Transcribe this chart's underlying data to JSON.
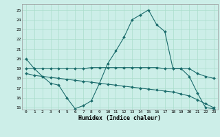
{
  "xlabel": "Humidex (Indice chaleur)",
  "background_color": "#cceee8",
  "grid_color": "#aaddcc",
  "line_color": "#1a6b6b",
  "xlim": [
    -0.5,
    23.5
  ],
  "ylim": [
    14.8,
    25.6
  ],
  "yticks": [
    15,
    16,
    17,
    18,
    19,
    20,
    21,
    22,
    23,
    24,
    25
  ],
  "xticks": [
    0,
    1,
    2,
    3,
    4,
    5,
    6,
    7,
    8,
    9,
    10,
    11,
    12,
    13,
    14,
    15,
    16,
    17,
    18,
    19,
    20,
    21,
    22,
    23
  ],
  "series1_x": [
    0,
    1,
    2,
    3,
    4,
    5,
    6,
    7,
    8,
    9,
    10,
    11,
    12,
    13,
    14,
    15,
    16,
    17,
    18,
    19,
    20,
    21,
    22,
    23
  ],
  "series1_y": [
    20.0,
    19.0,
    18.2,
    17.5,
    17.3,
    16.0,
    14.9,
    15.2,
    15.7,
    17.5,
    19.5,
    20.8,
    22.2,
    24.0,
    24.5,
    25.0,
    23.5,
    22.8,
    19.0,
    19.0,
    18.2,
    16.5,
    15.0,
    14.9
  ],
  "series2_x": [
    0,
    1,
    2,
    3,
    4,
    5,
    6,
    7,
    8,
    9,
    10,
    11,
    12,
    13,
    14,
    15,
    16,
    17,
    18,
    19,
    20,
    21,
    22,
    23
  ],
  "series2_y": [
    19.0,
    19.0,
    19.0,
    19.0,
    19.0,
    19.0,
    19.0,
    19.0,
    19.1,
    19.1,
    19.1,
    19.1,
    19.1,
    19.1,
    19.1,
    19.1,
    19.1,
    19.0,
    19.0,
    19.0,
    19.0,
    18.5,
    18.2,
    18.0
  ],
  "series3_x": [
    0,
    1,
    2,
    3,
    4,
    5,
    6,
    7,
    8,
    9,
    10,
    11,
    12,
    13,
    14,
    15,
    16,
    17,
    18,
    19,
    20,
    21,
    22,
    23
  ],
  "series3_y": [
    18.5,
    18.3,
    18.2,
    18.1,
    18.0,
    17.9,
    17.8,
    17.7,
    17.6,
    17.5,
    17.4,
    17.3,
    17.2,
    17.1,
    17.0,
    16.9,
    16.8,
    16.7,
    16.6,
    16.4,
    16.2,
    15.8,
    15.4,
    15.0
  ]
}
